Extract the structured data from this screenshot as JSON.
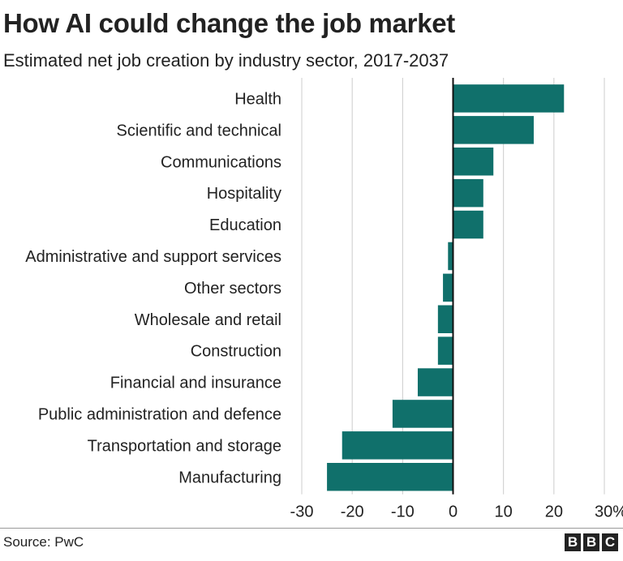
{
  "title": "How AI could change the job market",
  "subtitle": "Estimated net job creation by industry sector, 2017-2037",
  "source": "Source: PwC",
  "logo": {
    "letters": [
      "B",
      "B",
      "C"
    ]
  },
  "colors": {
    "bar": "#10706b",
    "grid": "#cccccc",
    "zero_axis": "#111111",
    "text": "#222222"
  },
  "chart_data": {
    "type": "bar",
    "orientation": "horizontal",
    "categories": [
      "Health",
      "Scientific and technical",
      "Communications",
      "Hospitality",
      "Education",
      "Administrative and support services",
      "Other sectors",
      "Wholesale and retail",
      "Construction",
      "Financial and insurance",
      "Public administration and defence",
      "Transportation and storage",
      "Manufacturing"
    ],
    "values": [
      22,
      16,
      8,
      6,
      6,
      -1,
      -2,
      -3,
      -3,
      -7,
      -12,
      -22,
      -25
    ],
    "xlim": [
      -30,
      30
    ],
    "ticks": [
      -30,
      -20,
      -10,
      0,
      10,
      20,
      30
    ],
    "tick_labels": [
      "-30",
      "-20",
      "-10",
      "0",
      "10",
      "20",
      "30%"
    ],
    "grid": true
  }
}
